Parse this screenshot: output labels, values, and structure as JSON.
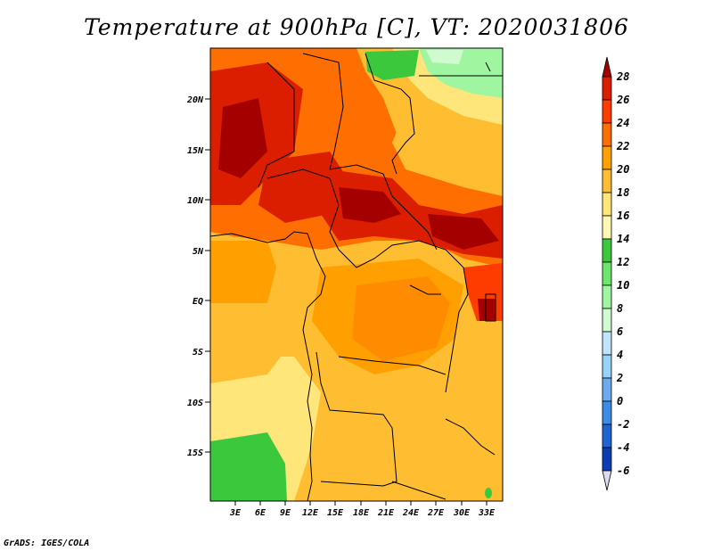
{
  "title": "Temperature at 900hPa [C], VT: 2020031806",
  "credit": "GrADS: IGES/COLA",
  "map": {
    "lon_labels": [
      "3E",
      "6E",
      "9E",
      "12E",
      "15E",
      "18E",
      "21E",
      "24E",
      "27E",
      "30E",
      "33E"
    ],
    "lat_labels": [
      "20N",
      "15N",
      "10N",
      "5N",
      "EQ",
      "5S",
      "10S",
      "15S"
    ],
    "lon_range": [
      0,
      35
    ],
    "lat_range": [
      -20,
      24
    ]
  },
  "colorbar": {
    "labels": [
      "28",
      "26",
      "24",
      "22",
      "20",
      "18",
      "16",
      "14",
      "12",
      "10",
      "8",
      "6",
      "4",
      "2",
      "0",
      "-2",
      "-4",
      "-6"
    ],
    "colors": [
      "#a50000",
      "#dc1e00",
      "#ff3c00",
      "#ff6e00",
      "#ffa000",
      "#ffbe32",
      "#ffe67a",
      "#fff8b4",
      "#3cc83c",
      "#6ee66e",
      "#a0f5a0",
      "#d0fad0",
      "#c0e4ff",
      "#96d2fa",
      "#6eaaf0",
      "#3c8ce6",
      "#1e64d2",
      "#0a3cb4",
      "#00228c",
      "#000050",
      "#dcdcf0"
    ]
  },
  "colors": {
    "coast": "#000000",
    "accent_hot": "#dc1e00",
    "accent_warm": "#ffa000",
    "accent_cool": "#3cc83c"
  }
}
